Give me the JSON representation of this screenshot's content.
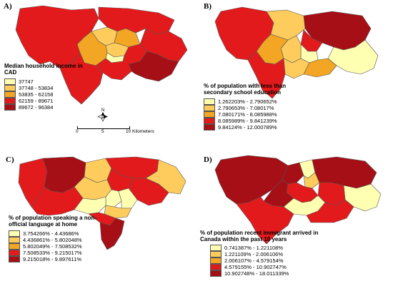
{
  "colors": {
    "c1": "#ffffb2",
    "c2": "#fecc5c",
    "c3": "#fd8d3c",
    "c4": "#e31a1c",
    "c5": "#a50f15",
    "outline": "#555555"
  },
  "panels": [
    {
      "label": "A)",
      "legend_title": "Median household income in CAD",
      "legend": [
        {
          "text": "37747",
          "color": "#ffffb2"
        },
        {
          "text": "37748 - 53834",
          "color": "#fecc5c"
        },
        {
          "text": "53835 - 62158",
          "color": "#f3a524"
        },
        {
          "text": "62159 - 89671",
          "color": "#e31a1c"
        },
        {
          "text": "89672 - 96384",
          "color": "#a50f15"
        }
      ]
    },
    {
      "label": "B)",
      "legend_title": "% of population with less than secondary school education",
      "legend": [
        {
          "text": "1.262203% - 2.790652%",
          "color": "#ffffb2"
        },
        {
          "text": "2.790653% - 7.08017%",
          "color": "#fecc5c"
        },
        {
          "text": "7.080171% - 8.085988%",
          "color": "#f3a524"
        },
        {
          "text": "8.085989% - 9.841239%",
          "color": "#e31a1c"
        },
        {
          "text": "9.84124% - 12.000789%",
          "color": "#a50f15"
        }
      ]
    },
    {
      "label": "C)",
      "legend_title": "% of population speaking a non-official language at home",
      "legend": [
        {
          "text": "3.754266% - 4.43686%",
          "color": "#ffffb2"
        },
        {
          "text": "4.436861% - 5.802048%",
          "color": "#fecc5c"
        },
        {
          "text": "5.802049% - 7.508532%",
          "color": "#f3a524"
        },
        {
          "text": "7.508533% - 9.215017%",
          "color": "#e31a1c"
        },
        {
          "text": "9.215018% - 9.897611%",
          "color": "#a50f15"
        }
      ]
    },
    {
      "label": "D)",
      "legend_title": "% of population recent immigrant arrived in Canada within the past 10 years",
      "legend": [
        {
          "text": "0.741387% - 1.221108%",
          "color": "#ffffb2"
        },
        {
          "text": "1.221109% - 2.006106%",
          "color": "#fecc5c"
        },
        {
          "text": "2.006107% - 4.579154%",
          "color": "#f3a524"
        },
        {
          "text": "4.579155% - 10.902747%",
          "color": "#e31a1c"
        },
        {
          "text": "10.902748% - 18.011339%",
          "color": "#a50f15"
        }
      ]
    }
  ],
  "scale": {
    "tick_0": "0",
    "tick_5": "5",
    "tick_10": "10 Kilometers"
  },
  "north_arrow": {
    "icon": "compass-north-arrow-icon",
    "letter": "N"
  }
}
